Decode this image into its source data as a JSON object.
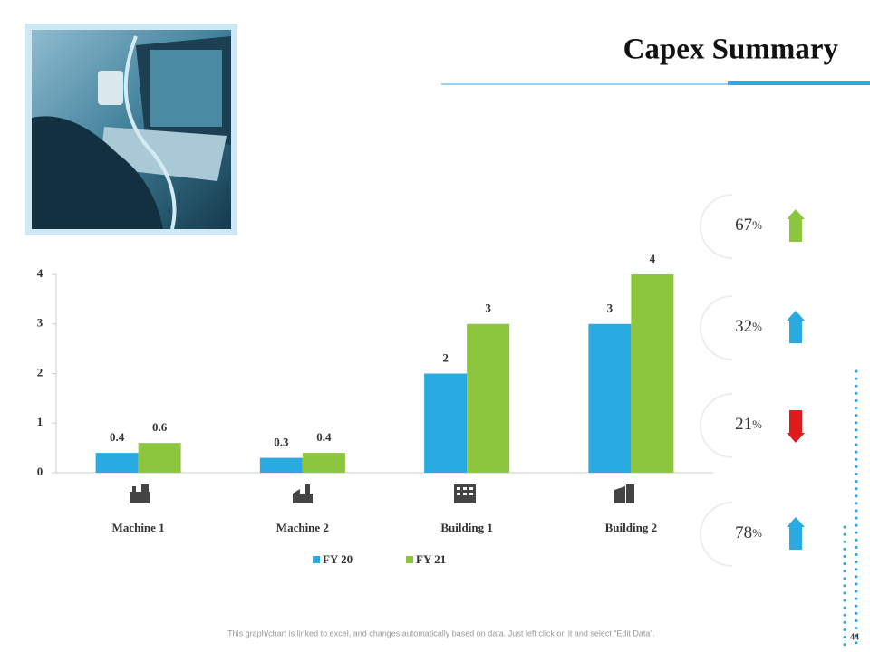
{
  "title": "Capex Summary",
  "chart_data": {
    "type": "bar",
    "categories": [
      "Machine 1",
      "Machine 2",
      "Building 1",
      "Building 2"
    ],
    "series": [
      {
        "name": "FY 20",
        "color": "#29abe2",
        "values": [
          0.4,
          0.3,
          2,
          3
        ]
      },
      {
        "name": "FY 21",
        "color": "#8cc63f",
        "values": [
          0.6,
          0.4,
          3,
          4
        ]
      }
    ],
    "ylim": [
      0,
      4
    ],
    "yticks": [
      0,
      1,
      2,
      3,
      4
    ],
    "grid": false,
    "legend": "bottom"
  },
  "indicators": [
    {
      "value": 67,
      "unit": "%",
      "direction": "up",
      "color": "#8cc63f"
    },
    {
      "value": 32,
      "unit": "%",
      "direction": "up",
      "color": "#29abe2"
    },
    {
      "value": 21,
      "unit": "%",
      "direction": "down",
      "color": "#e01b1b"
    },
    {
      "value": 78,
      "unit": "%",
      "direction": "up",
      "color": "#29abe2"
    }
  ],
  "footer": "This graph/chart is linked to excel, and changes automatically based on data. Just left click on it and select “Edit Data”.",
  "page_number": "44"
}
